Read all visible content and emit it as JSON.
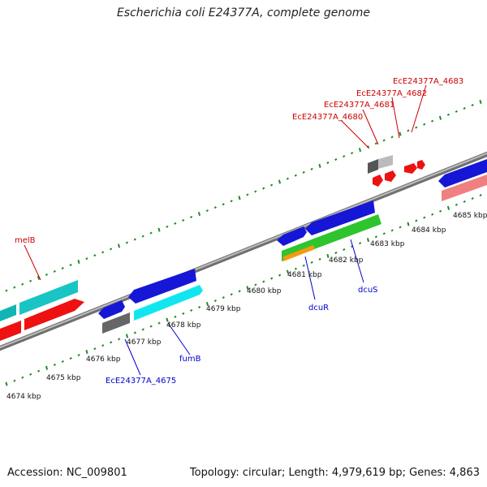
{
  "title": "Escherichia coli E24377A, complete genome",
  "footer": {
    "accession": "Accession: NC_009801",
    "topology": "Topology: circular; Length: 4,979,619 bp; Genes: 4,863"
  },
  "colors": {
    "backbone": "#8a8a8a",
    "tick": "#1e8c1e",
    "red_label": "#cc0000",
    "blue_label": "#0000cc"
  },
  "kbp_labels": [
    "4674 kbp",
    "4675 kbp",
    "4676 kbp",
    "4677 kbp",
    "4678 kbp",
    "4679 kbp",
    "4680 kbp",
    "4681 kbp",
    "4682 kbp",
    "4683 kbp",
    "4684 kbp",
    "4685 kbp"
  ],
  "upper_labels": [
    "melB",
    "EcE24377A_4680",
    "EcE24377A_4681",
    "EcE24377A_4682",
    "EcE24377A_4683"
  ],
  "lower_labels": [
    "EcE24377A_4675",
    "fumB",
    "dcuR",
    "dcuS"
  ]
}
